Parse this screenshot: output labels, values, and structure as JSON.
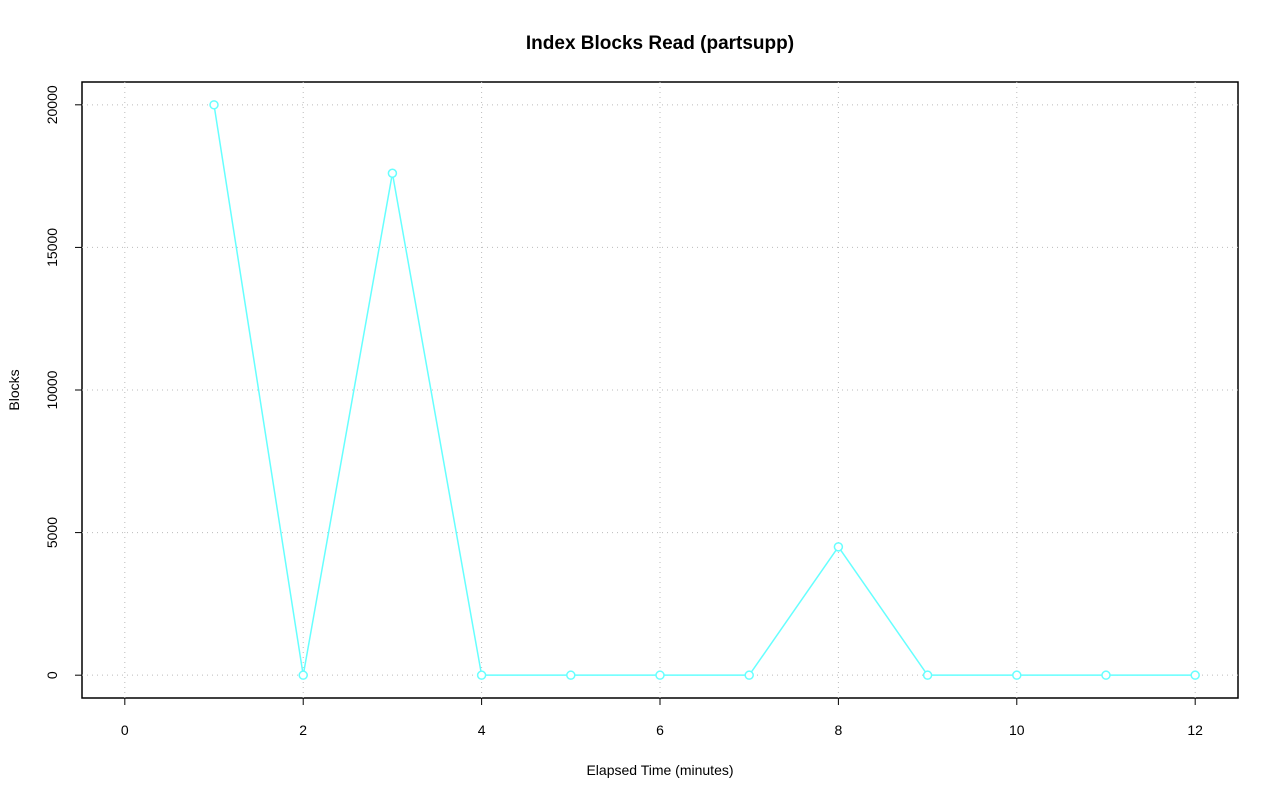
{
  "chart_data": {
    "type": "line",
    "title": "Index Blocks Read (partsupp)",
    "x_label": "Elapsed Time (minutes)",
    "y_label": "Blocks",
    "x": [
      1,
      2,
      3,
      4,
      5,
      6,
      7,
      8,
      9,
      10,
      11,
      12
    ],
    "series": [
      {
        "name": "partsupp",
        "color": "#66ffff",
        "values": [
          20000,
          0,
          17600,
          0,
          0,
          0,
          0,
          4500,
          0,
          0,
          0,
          0
        ]
      }
    ],
    "xlim": [
      -0.48,
      12.48
    ],
    "xticks": [
      0,
      2,
      4,
      6,
      8,
      10,
      12
    ],
    "ylim": [
      -800,
      20800
    ],
    "yticks": [
      0,
      5000,
      10000,
      15000,
      20000
    ],
    "grid": true
  }
}
